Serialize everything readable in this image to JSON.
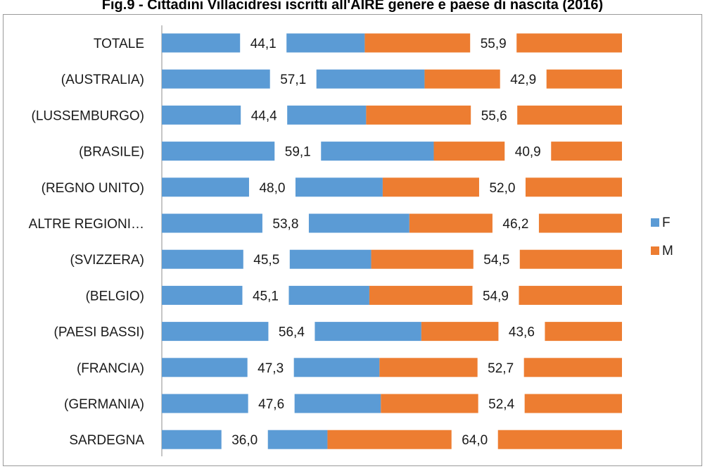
{
  "chart_data": {
    "type": "bar",
    "orientation": "horizontal",
    "stacked": "percent",
    "title": "Fig.9 - Cittadini Villacidresi iscritti all'AIRE genere e paese di nascita (2016)",
    "categories": [
      "TOTALE",
      "(AUSTRALIA)",
      "(LUSSEMBURGO)",
      "(BRASILE)",
      "(REGNO UNITO)",
      "ALTRE REGIONI…",
      "(SVIZZERA)",
      "(BELGIO)",
      "(PAESI BASSI)",
      "(FRANCIA)",
      "(GERMANIA)",
      "SARDEGNA"
    ],
    "series": [
      {
        "name": "F",
        "color": "#5B9BD5",
        "values": [
          44.1,
          57.1,
          44.4,
          59.1,
          48.0,
          53.8,
          45.5,
          45.1,
          56.4,
          47.3,
          47.6,
          36.0
        ],
        "labels": [
          "44,1",
          "57,1",
          "44,4",
          "59,1",
          "48,0",
          "53,8",
          "45,5",
          "45,1",
          "56,4",
          "47,3",
          "47,6",
          "36,0"
        ]
      },
      {
        "name": "M",
        "color": "#ED7D31",
        "values": [
          55.9,
          42.9,
          55.6,
          40.9,
          52.0,
          46.2,
          54.5,
          54.9,
          43.6,
          52.7,
          52.4,
          64.0
        ],
        "labels": [
          "55,9",
          "42,9",
          "55,6",
          "40,9",
          "52,0",
          "46,2",
          "54,5",
          "54,9",
          "43,6",
          "52,7",
          "52,4",
          "64,0"
        ]
      }
    ],
    "xlim": [
      0,
      100
    ],
    "legend_position": "right",
    "grid": false
  }
}
